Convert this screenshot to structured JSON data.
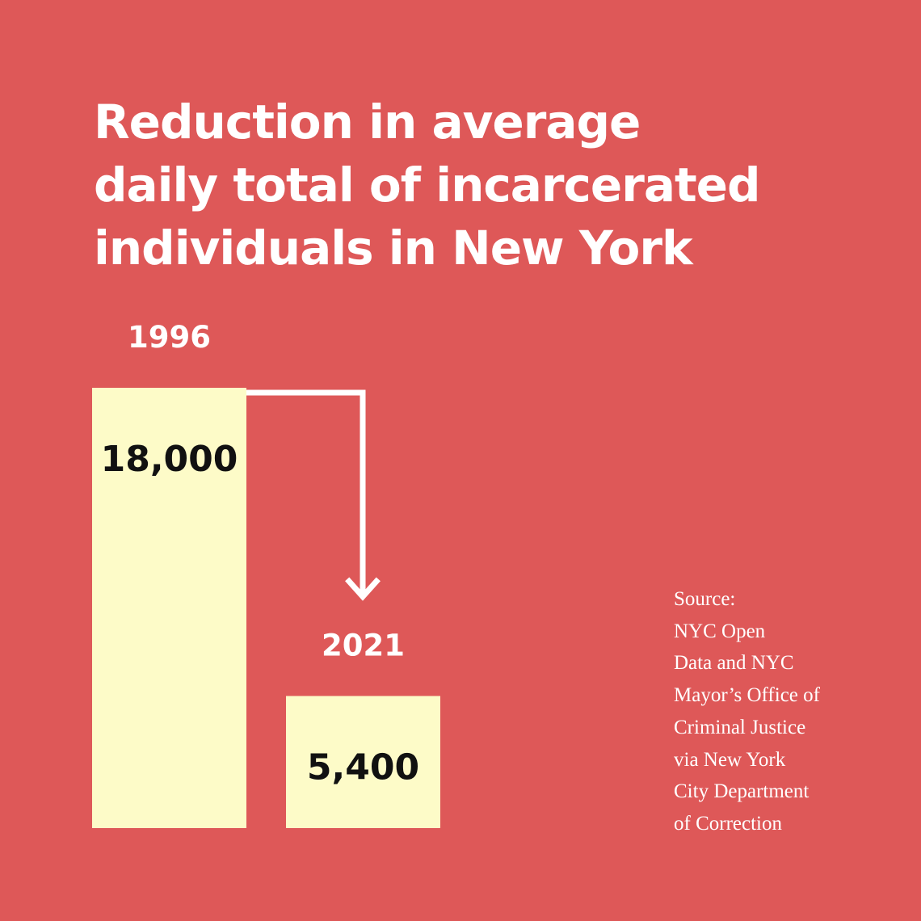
{
  "colors": {
    "background": "#de5858",
    "bar": "#fdfbc8",
    "arrow": "#ffffff",
    "text_light": "#ffffff",
    "text_dark": "#111111"
  },
  "chart_data": {
    "type": "bar",
    "title_lines": [
      "Reduction in average",
      "daily total of incarcerated",
      "individuals in New York"
    ],
    "categories": [
      "1996",
      "2021"
    ],
    "values": [
      18000,
      5400
    ],
    "data_labels": [
      "18,000",
      "5,400"
    ],
    "annotation": "arrow from 1996 bar to 2021 bar",
    "axes": "none",
    "grid": false,
    "legend": "none"
  },
  "source": {
    "lines": [
      "Source:",
      "NYC Open",
      "Data and NYC",
      "Mayor’s Office of",
      "Criminal Justice",
      "via New York",
      "City Department",
      "of Correction"
    ]
  }
}
